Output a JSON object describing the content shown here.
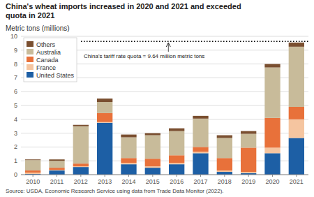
{
  "chart_data": {
    "type": "bar",
    "stacked": true,
    "title": "China's wheat imports increased in 2020 and 2021 and exceeded\nquota in 2021",
    "ylabel": "Metric tons (millions)",
    "source": "Source: USDA, Economic Research Service using data from Trade Data Monitor (2022).",
    "categories": [
      "2010",
      "2011",
      "2012",
      "2013",
      "2014",
      "2015",
      "2016",
      "2017",
      "2018",
      "2019",
      "2020",
      "2021"
    ],
    "series": [
      {
        "name": "United States",
        "color": "#1d5fa5",
        "values": [
          0.05,
          0.3,
          0.55,
          3.75,
          0.75,
          0.5,
          0.75,
          1.55,
          0.2,
          0.1,
          1.55,
          2.65
        ]
      },
      {
        "name": "France",
        "color": "#f5c5a0",
        "values": [
          0.1,
          0.05,
          0.05,
          0.05,
          0.1,
          0.1,
          0.1,
          0.1,
          0.1,
          0.1,
          0.4,
          1.35
        ]
      },
      {
        "name": "Canada",
        "color": "#e8713a",
        "values": [
          0.15,
          0.15,
          0.2,
          0.65,
          0.35,
          0.55,
          0.55,
          0.35,
          0.9,
          1.75,
          2.15,
          0.9
        ]
      },
      {
        "name": "Australia",
        "color": "#c8bb9a",
        "values": [
          0.75,
          0.5,
          2.7,
          0.8,
          1.5,
          1.7,
          1.75,
          2.05,
          1.45,
          1.0,
          3.65,
          4.35
        ]
      },
      {
        "name": "Others",
        "color": "#7a4f30",
        "values": [
          0.05,
          0.1,
          0.1,
          0.25,
          0.2,
          0.15,
          0.2,
          0.2,
          0.2,
          0.2,
          0.25,
          0.3
        ]
      }
    ],
    "annotations": [
      {
        "text": "China's tariff rate quota = 9.64 million metric tons",
        "value": 9.64
      }
    ],
    "ylim": [
      0,
      10
    ],
    "yticks": [
      0,
      1,
      2,
      3,
      4,
      5,
      6,
      7,
      8,
      9,
      10
    ],
    "grid": true,
    "legend": "upper left"
  }
}
